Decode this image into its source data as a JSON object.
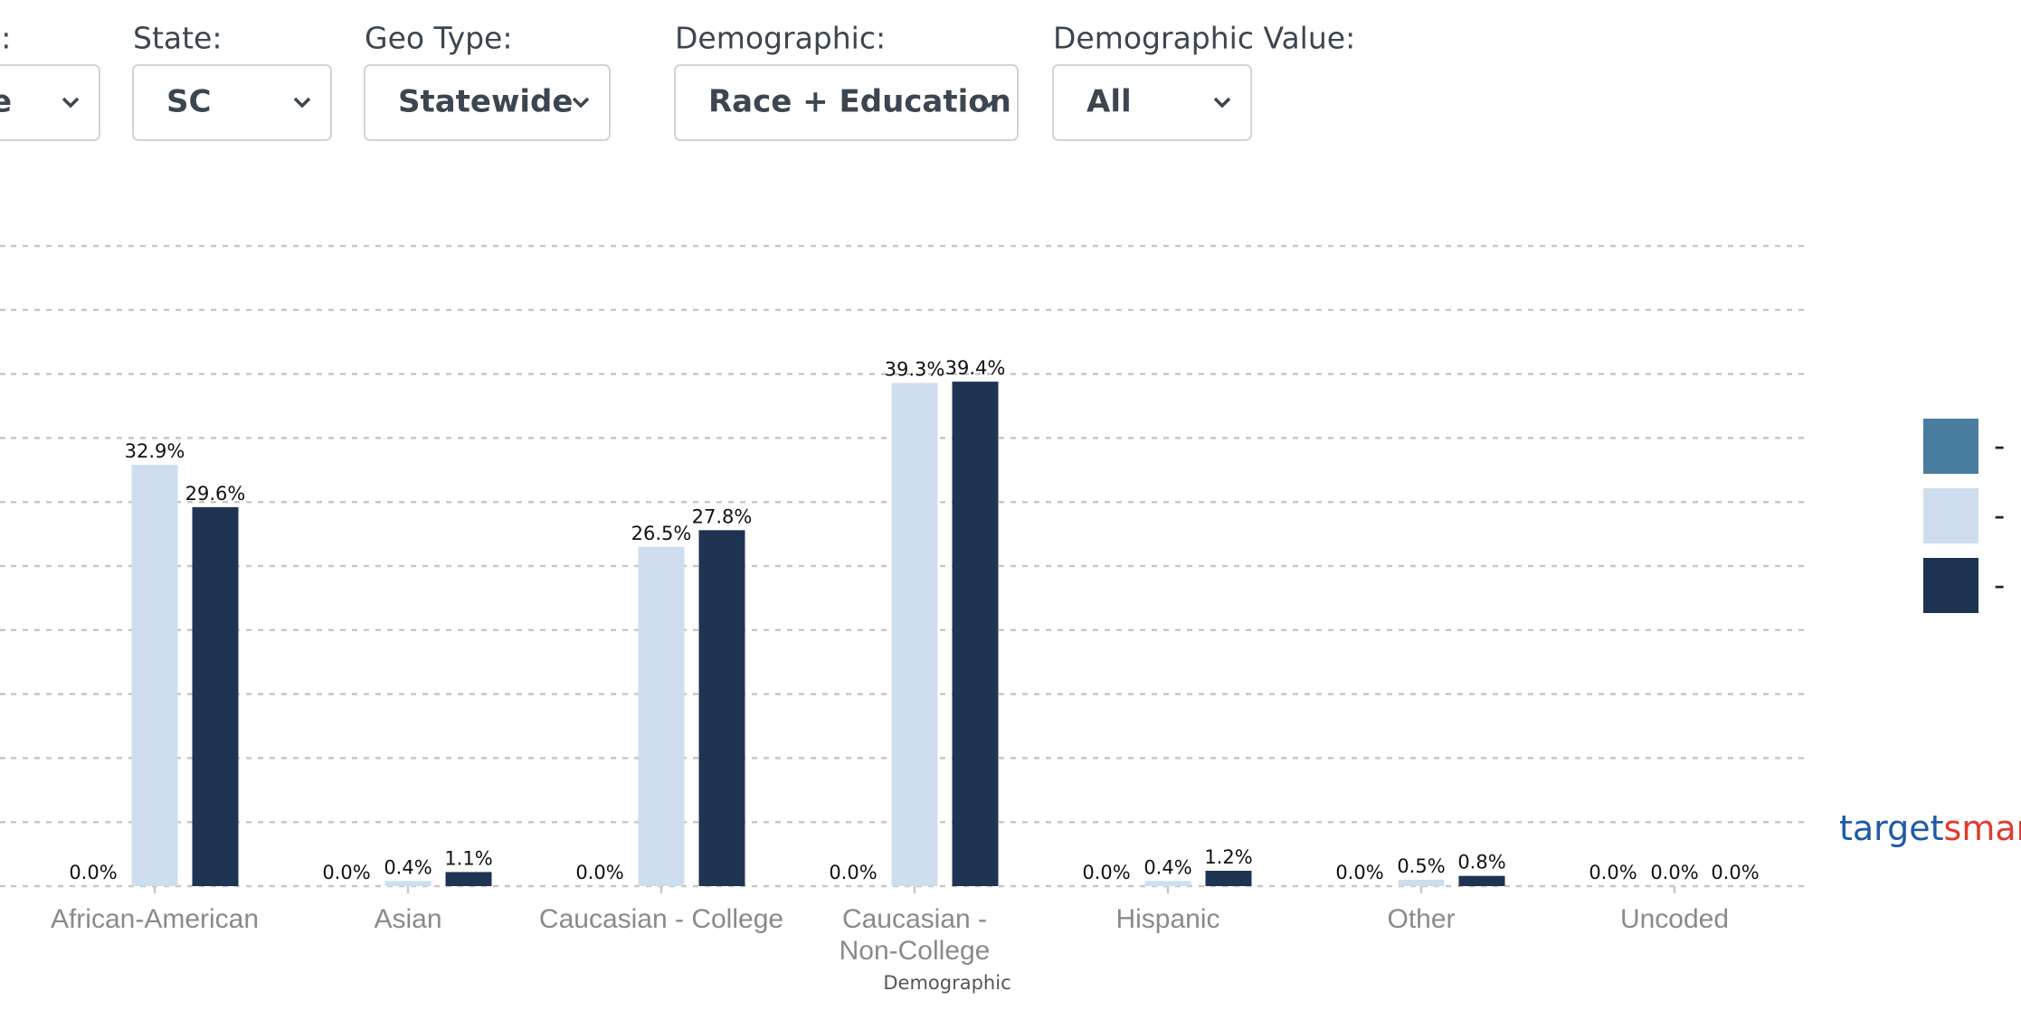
{
  "filters": [
    {
      "label": "pe:",
      "value": "e"
    },
    {
      "label": "State:",
      "value": "SC"
    },
    {
      "label": "Geo Type:",
      "value": "Statewide"
    },
    {
      "label": "Demographic:",
      "value": "Race + Education"
    },
    {
      "label": "Demographic Value:",
      "value": "All"
    }
  ],
  "chart_data": {
    "type": "bar",
    "x_label": "Demographic",
    "categories": [
      "African-American",
      "Asian",
      "Caucasian - College",
      "Caucasian - Non-College",
      "Hispanic",
      "Other",
      "Uncoded"
    ],
    "series": [
      {
        "name": "-",
        "color": "#497ea1",
        "values": [
          0.0,
          0.0,
          0.0,
          0.0,
          0.0,
          0.0,
          0.0
        ],
        "value_labels": [
          "0.0%",
          "0.0%",
          "0.0%",
          "0.0%",
          "0.0%",
          "0.0%",
          "0.0%"
        ]
      },
      {
        "name": "-",
        "color": "#cfdeee",
        "values": [
          32.9,
          0.4,
          26.5,
          39.3,
          0.4,
          0.5,
          0.0
        ],
        "value_labels": [
          "32.9%",
          "0.4%",
          "26.5%",
          "39.3%",
          "0.4%",
          "0.5%",
          "0.0%"
        ]
      },
      {
        "name": "-",
        "color": "#1f3352",
        "values": [
          29.6,
          1.1,
          27.8,
          39.4,
          1.2,
          0.8,
          0.0
        ],
        "value_labels": [
          "29.6%",
          "1.1%",
          "27.8%",
          "39.4%",
          "1.2%",
          "0.8%",
          "0.0%"
        ]
      }
    ],
    "ylim": [
      0,
      50
    ],
    "yticks": [
      0,
      5,
      10,
      15,
      20,
      25,
      30,
      35,
      40,
      45,
      50
    ],
    "grid": true
  },
  "watermark": {
    "part1": "target",
    "part2": "smart"
  }
}
